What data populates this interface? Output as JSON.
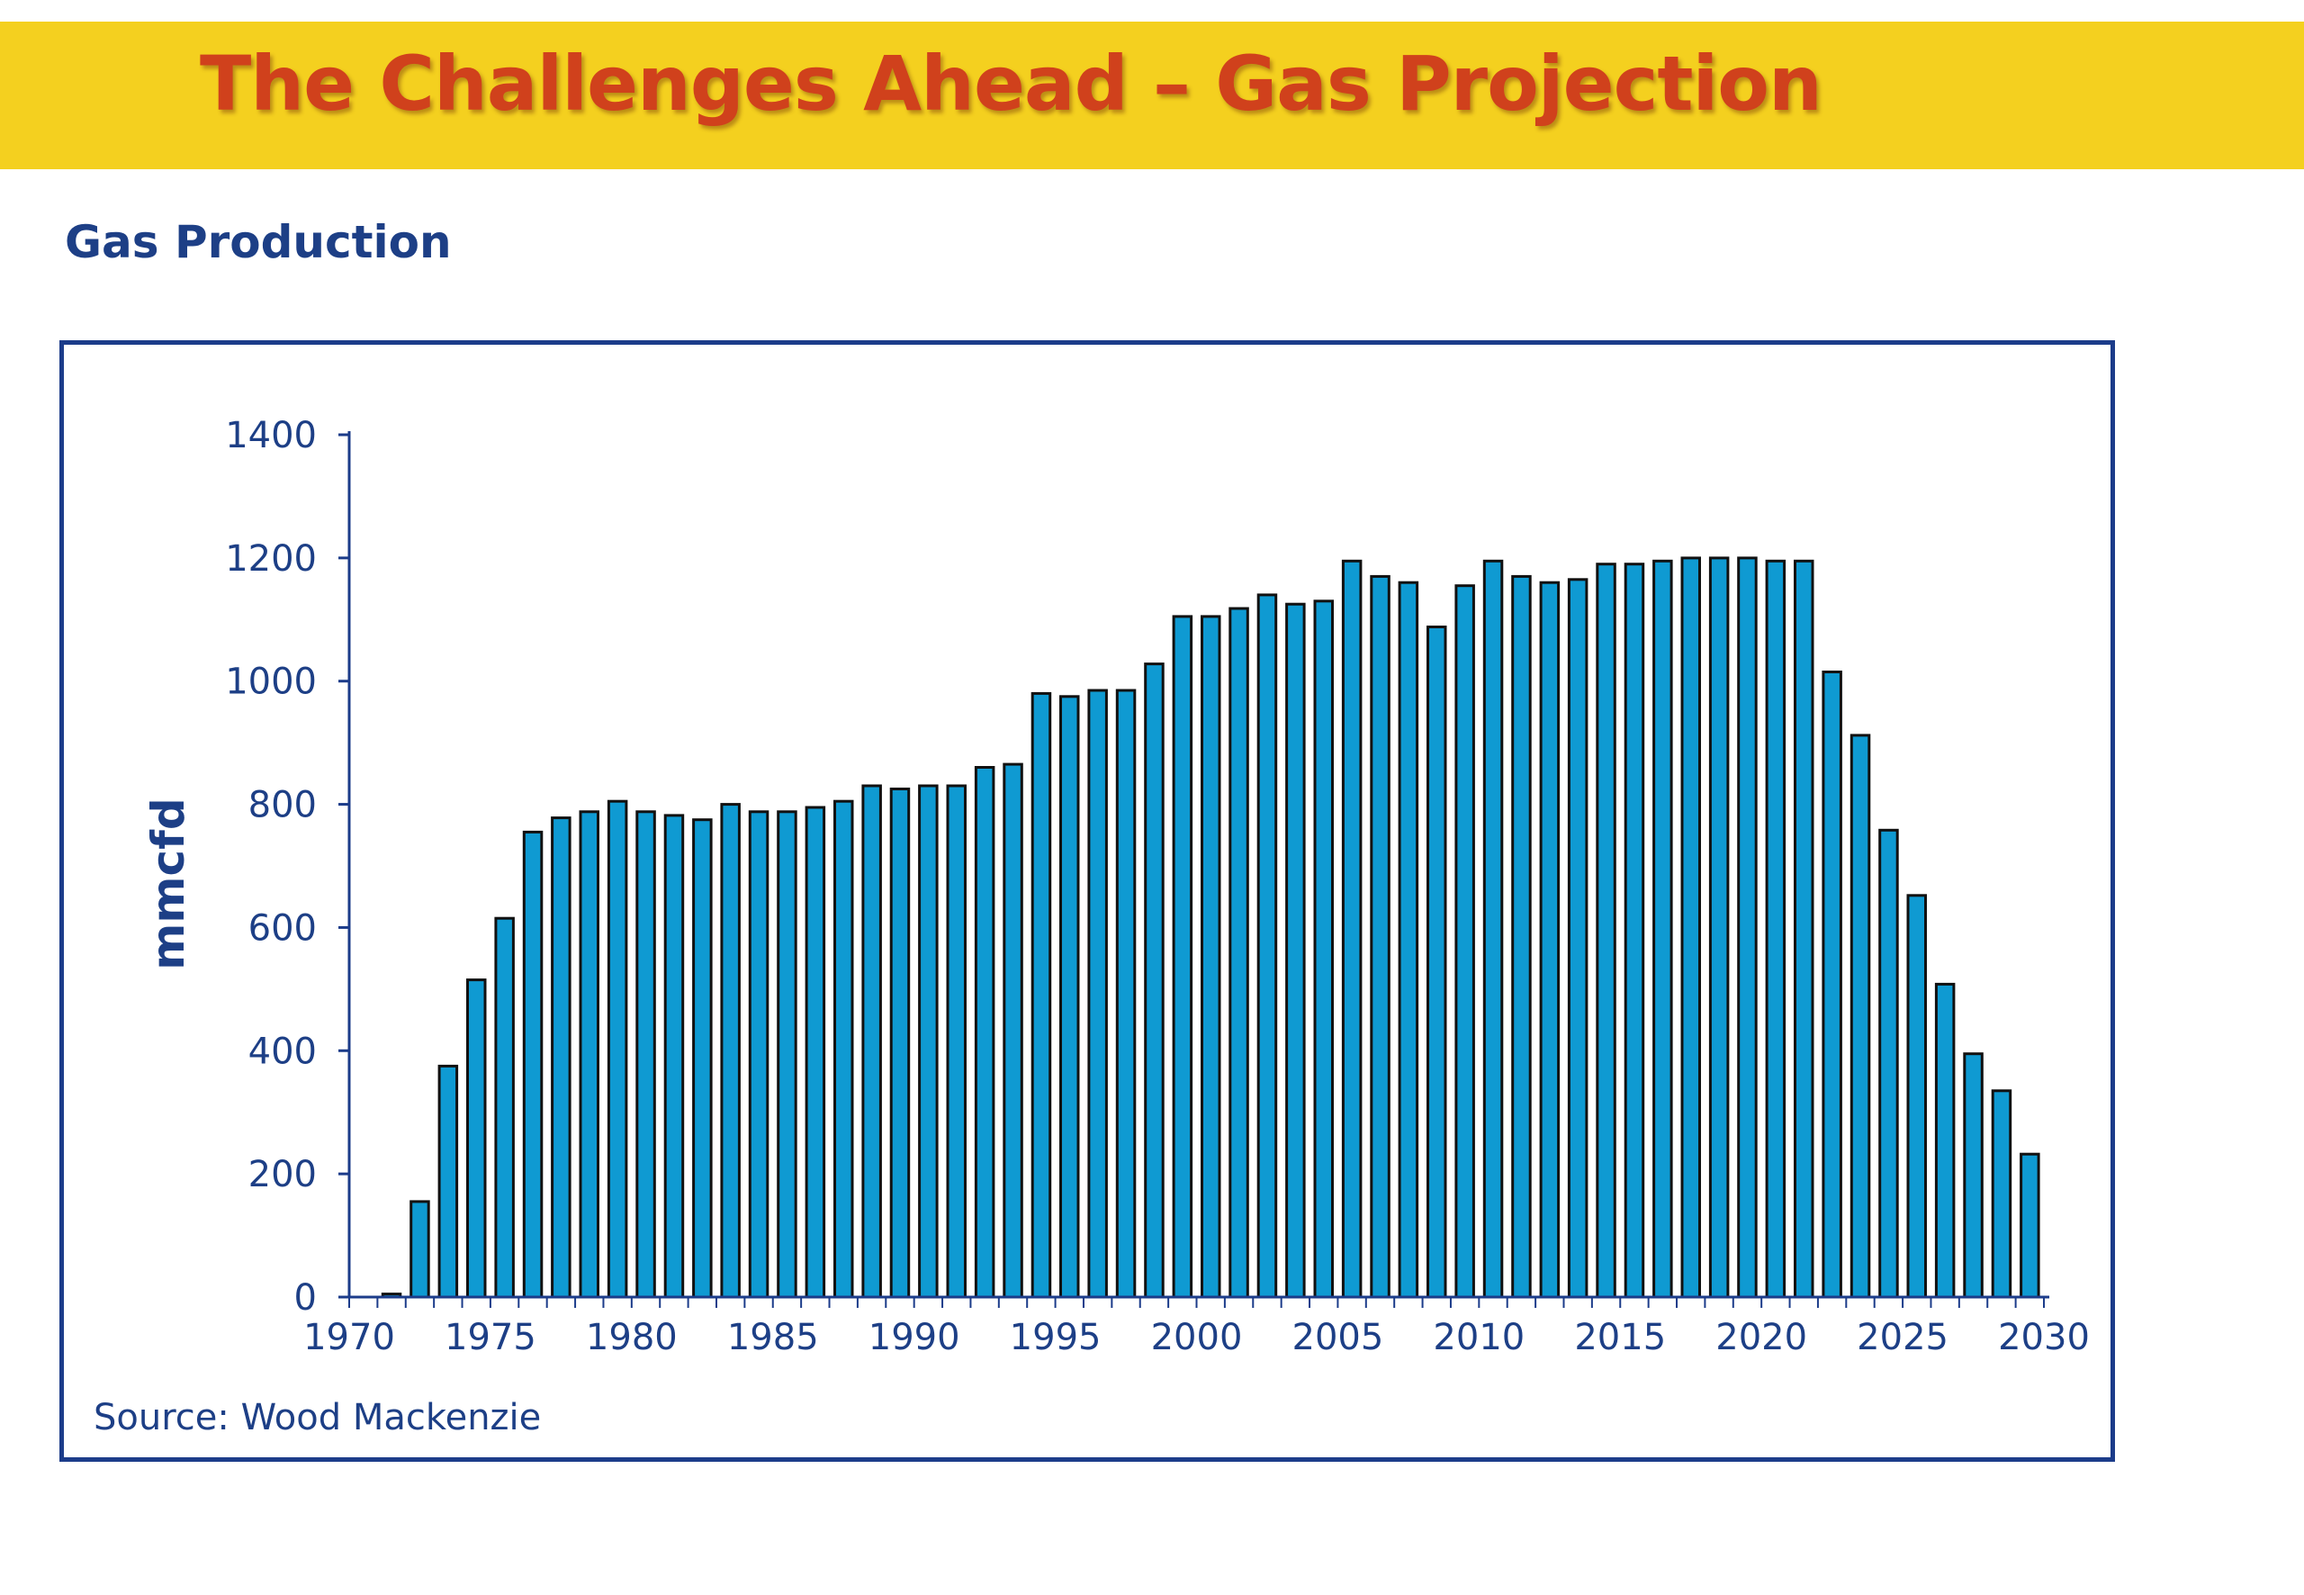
{
  "header": {
    "title": "The Challenges Ahead – Gas Projection",
    "background_color": "#f4d01f",
    "title_color": "#d0411c"
  },
  "chart_data": {
    "type": "bar",
    "title": "Gas Production",
    "xlabel": "",
    "ylabel": "mmcfd",
    "ylim": [
      0,
      1400
    ],
    "yticks": [
      0,
      200,
      400,
      600,
      800,
      1000,
      1200,
      1400
    ],
    "xlim": [
      1970,
      2030
    ],
    "xticks": [
      1970,
      1975,
      1980,
      1985,
      1990,
      1995,
      2000,
      2005,
      2010,
      2015,
      2020,
      2025,
      2030
    ],
    "grid": false,
    "bar_color": "#0f9ad2",
    "bar_edge_color": "#111111",
    "axis_color": "#1c3c8a",
    "source": "Source: Wood Mackenzie",
    "x": [
      1971,
      1972,
      1973,
      1974,
      1975,
      1976,
      1977,
      1978,
      1979,
      1980,
      1981,
      1982,
      1983,
      1984,
      1985,
      1986,
      1987,
      1988,
      1989,
      1990,
      1991,
      1992,
      1993,
      1994,
      1995,
      1996,
      1997,
      1998,
      1999,
      2000,
      2001,
      2002,
      2003,
      2004,
      2005,
      2006,
      2007,
      2008,
      2009,
      2010,
      2011,
      2012,
      2013,
      2014,
      2015,
      2016,
      2017,
      2018,
      2019,
      2020,
      2021,
      2022,
      2023,
      2024,
      2025,
      2026,
      2027,
      2028,
      2029,
      2030
    ],
    "values": [
      0,
      5,
      155,
      375,
      515,
      615,
      755,
      778,
      788,
      805,
      788,
      782,
      775,
      800,
      788,
      788,
      795,
      805,
      830,
      825,
      830,
      830,
      860,
      865,
      980,
      975,
      985,
      985,
      1028,
      1105,
      1105,
      1118,
      1140,
      1125,
      1130,
      1195,
      1170,
      1160,
      1088,
      1155,
      1195,
      1170,
      1160,
      1165,
      1190,
      1190,
      1195,
      1200,
      1200,
      1200,
      1195,
      1195,
      1015,
      912,
      758,
      652,
      508,
      395,
      335,
      232
    ]
  }
}
